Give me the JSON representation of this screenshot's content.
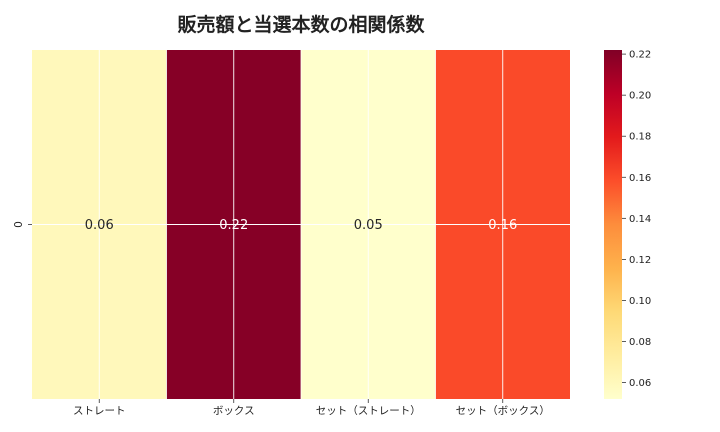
{
  "chart_data": {
    "type": "heatmap",
    "title": "販売額と当選本数の相関係数",
    "x_categories": [
      "ストレート",
      "ボックス",
      "セット（ストレート）",
      "セット（ボックス）"
    ],
    "y_categories": [
      "0"
    ],
    "values": [
      [
        0.06,
        0.22,
        0.05,
        0.16
      ]
    ],
    "annotations": [
      "0.06",
      "0.22",
      "0.05",
      "0.16"
    ],
    "colorbar": {
      "range": [
        0.052,
        0.222
      ],
      "ticks": [
        "0.06",
        "0.08",
        "0.10",
        "0.12",
        "0.14",
        "0.16",
        "0.18",
        "0.20",
        "0.22"
      ],
      "colormap": "YlOrRd"
    },
    "grid": true
  }
}
